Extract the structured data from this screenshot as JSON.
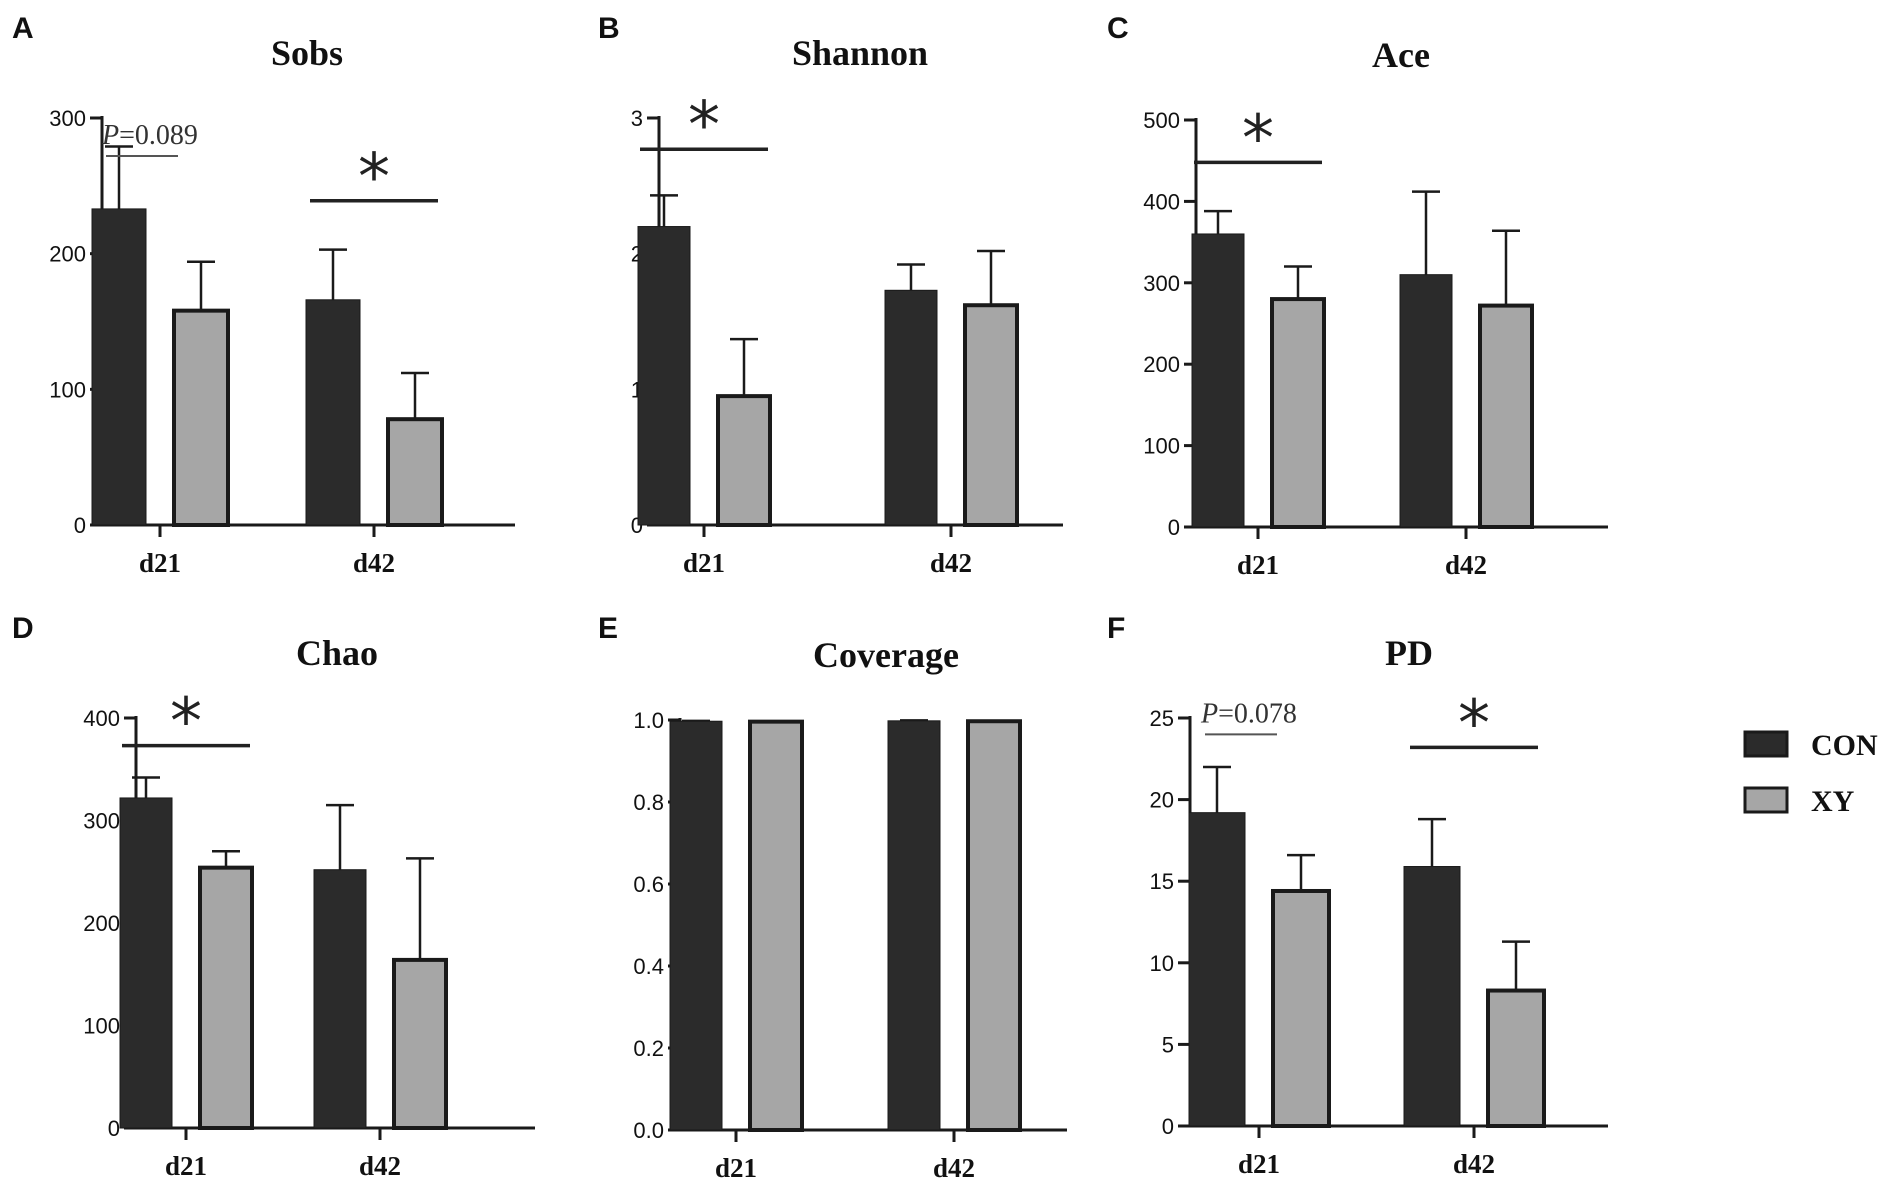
{
  "colors": {
    "CON": "#2b2b2b",
    "XY": "#a6a6a6",
    "axis": "#1a1a1a",
    "edge": "#1a1a1a"
  },
  "legend": [
    {
      "key": "CON",
      "label": "CON"
    },
    {
      "key": "XY",
      "label": "XY"
    }
  ],
  "chart_data": [
    {
      "letter": "A",
      "type": "bar",
      "title": "Sobs",
      "categories": [
        "d21",
        "d42"
      ],
      "ylim": [
        0,
        300
      ],
      "yticks": [
        0,
        100,
        200,
        300
      ],
      "yticklabels": [
        "0",
        "100",
        "200",
        "300"
      ],
      "series": [
        {
          "name": "CON",
          "values": [
            233,
            166
          ],
          "errors": [
            46,
            37
          ]
        },
        {
          "name": "XY",
          "values": [
            158,
            78
          ],
          "errors": [
            36,
            34
          ]
        }
      ],
      "annotations": [
        {
          "category": "d21",
          "kind": "p",
          "text": "=0.089",
          "prefix": "P",
          "y": 272
        },
        {
          "category": "d42",
          "kind": "star",
          "text": "*",
          "y": 239
        }
      ]
    },
    {
      "letter": "B",
      "type": "bar",
      "title": "Shannon",
      "categories": [
        "d21",
        "d42"
      ],
      "ylim": [
        0,
        3
      ],
      "yticks": [
        0,
        1,
        2,
        3
      ],
      "yticklabels": [
        "0",
        "1",
        "2",
        "3"
      ],
      "series": [
        {
          "name": "CON",
          "values": [
            2.2,
            1.73
          ],
          "errors": [
            0.23,
            0.19
          ]
        },
        {
          "name": "XY",
          "values": [
            0.95,
            1.62
          ],
          "errors": [
            0.42,
            0.4
          ]
        }
      ],
      "annotations": [
        {
          "category": "d21",
          "kind": "star",
          "text": "*",
          "y": 2.77
        }
      ]
    },
    {
      "letter": "C",
      "type": "bar",
      "title": "Ace",
      "categories": [
        "d21",
        "d42"
      ],
      "ylim": [
        0,
        500
      ],
      "yticks": [
        0,
        100,
        200,
        300,
        400,
        500
      ],
      "yticklabels": [
        "0",
        "100",
        "200",
        "300",
        "400",
        "500"
      ],
      "series": [
        {
          "name": "CON",
          "values": [
            360,
            310
          ],
          "errors": [
            28,
            102
          ]
        },
        {
          "name": "XY",
          "values": [
            280,
            272
          ],
          "errors": [
            40,
            92
          ]
        }
      ],
      "annotations": [
        {
          "category": "d21",
          "kind": "star",
          "text": "*",
          "y": 448
        }
      ]
    },
    {
      "letter": "D",
      "type": "bar",
      "title": "Chao",
      "categories": [
        "d21",
        "d42"
      ],
      "ylim": [
        0,
        400
      ],
      "yticks": [
        0,
        100,
        200,
        300,
        400
      ],
      "yticklabels": [
        "0",
        "100",
        "200",
        "300",
        "400"
      ],
      "series": [
        {
          "name": "CON",
          "values": [
            322,
            252
          ],
          "errors": [
            20,
            63
          ]
        },
        {
          "name": "XY",
          "values": [
            254,
            164
          ],
          "errors": [
            16,
            99
          ]
        }
      ],
      "annotations": [
        {
          "category": "d21",
          "kind": "star",
          "text": "*",
          "y": 373
        }
      ]
    },
    {
      "letter": "E",
      "type": "bar",
      "title": "Coverage",
      "categories": [
        "d21",
        "d42"
      ],
      "ylim": [
        0,
        1
      ],
      "yticks": [
        0,
        0.2,
        0.4,
        0.6,
        0.8,
        1.0
      ],
      "yticklabels": [
        "0.0",
        "0.2",
        "0.4",
        "0.6",
        "0.8",
        "1.0"
      ],
      "series": [
        {
          "name": "CON",
          "values": [
            0.997,
            0.998
          ],
          "errors": [
            0.001,
            0.001
          ]
        },
        {
          "name": "XY",
          "values": [
            0.996,
            0.997
          ],
          "errors": [
            0.001,
            0.001
          ]
        }
      ],
      "annotations": []
    },
    {
      "letter": "F",
      "type": "bar",
      "title": "PD",
      "categories": [
        "d21",
        "d42"
      ],
      "ylim": [
        0,
        25
      ],
      "yticks": [
        0,
        5,
        10,
        15,
        20,
        25
      ],
      "yticklabels": [
        "0",
        "5",
        "10",
        "15",
        "20",
        "25"
      ],
      "series": [
        {
          "name": "CON",
          "values": [
            19.2,
            15.9
          ],
          "errors": [
            2.8,
            2.9
          ]
        },
        {
          "name": "XY",
          "values": [
            14.4,
            8.3
          ],
          "errors": [
            2.2,
            3.0
          ]
        }
      ],
      "annotations": [
        {
          "category": "d21",
          "kind": "p",
          "text": "=0.078",
          "prefix": "P",
          "y": 24.0
        },
        {
          "category": "d42",
          "kind": "star",
          "text": "*",
          "y": 23.2
        }
      ]
    }
  ]
}
